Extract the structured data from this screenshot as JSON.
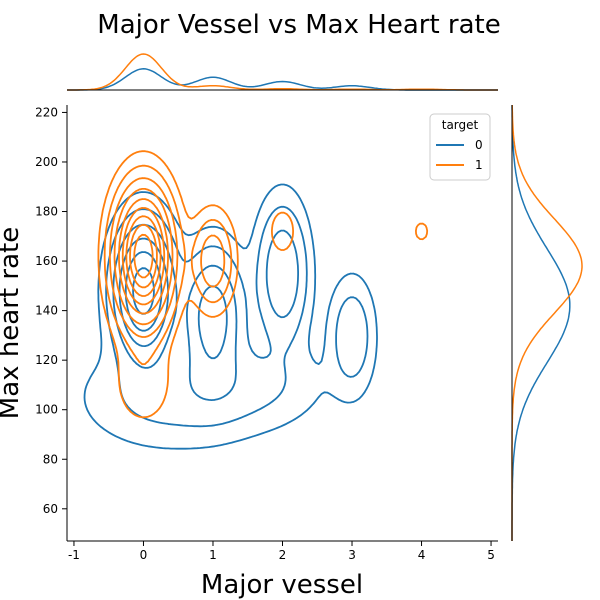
{
  "chart_data": {
    "type": "kde-joint",
    "title": "Major Vessel vs Max Heart rate",
    "xlabel": "Major vessel",
    "ylabel": "Max heart rate",
    "xlim": [
      -1.1,
      5.1
    ],
    "ylim": [
      47,
      223
    ],
    "x_ticks": [
      -1,
      0,
      1,
      2,
      3,
      4,
      5
    ],
    "y_ticks": [
      60,
      80,
      100,
      120,
      140,
      160,
      180,
      200,
      220
    ],
    "legend": {
      "title": "target",
      "position": "top-right",
      "entries": [
        "0",
        "1"
      ]
    },
    "series": [
      {
        "name": "0",
        "color": "#1f77b4",
        "components": [
          {
            "mx": 0.0,
            "my": 148,
            "sx": 0.26,
            "sy": 16,
            "w": 1.0
          },
          {
            "mx": 1.0,
            "my": 138,
            "sx": 0.26,
            "sy": 16,
            "w": 0.55
          },
          {
            "mx": 2.0,
            "my": 155,
            "sx": 0.22,
            "sy": 17,
            "w": 0.42
          },
          {
            "mx": 3.0,
            "my": 130,
            "sx": 0.2,
            "sy": 14,
            "w": 0.22
          },
          {
            "mx": 0.4,
            "my": 105,
            "sx": 0.8,
            "sy": 13,
            "w": 0.15
          },
          {
            "mx": 1.5,
            "my": 110,
            "sx": 0.7,
            "sy": 11,
            "w": 0.12
          }
        ],
        "levels": [
          0.045,
          0.12,
          0.25,
          0.42,
          0.62,
          0.85
        ],
        "marginal_x": [
          0.0,
          1.0,
          2.0,
          3.0
        ],
        "marginal_x_w": [
          0.5,
          0.3,
          0.2,
          0.1
        ],
        "marginal_y_mean": 142,
        "marginal_y_sd": 23
      },
      {
        "name": "1",
        "color": "#ff7f0e",
        "components": [
          {
            "mx": 0.0,
            "my": 162,
            "sx": 0.26,
            "sy": 17,
            "w": 1.0
          },
          {
            "mx": 1.0,
            "my": 160,
            "sx": 0.19,
            "sy": 12,
            "w": 0.26
          },
          {
            "mx": 2.0,
            "my": 172,
            "sx": 0.2,
            "sy": 10,
            "w": 0.06
          },
          {
            "mx": 3.0,
            "my": 145,
            "sx": 0.22,
            "sy": 7,
            "w": 0.04
          },
          {
            "mx": 4.0,
            "my": 172,
            "sx": 0.18,
            "sy": 7,
            "w": 0.05
          },
          {
            "mx": 4.0,
            "my": 144,
            "sx": 0.12,
            "sy": 4,
            "w": 0.025
          },
          {
            "mx": 0.0,
            "my": 110,
            "sx": 0.3,
            "sy": 12,
            "w": 0.08
          }
        ],
        "levels": [
          0.045,
          0.1,
          0.18,
          0.28,
          0.4,
          0.52,
          0.64,
          0.76,
          0.88
        ],
        "marginal_x": [
          0.0,
          1.0,
          2.0,
          3.0,
          4.0
        ],
        "marginal_x_w": [
          0.85,
          0.1,
          0.03,
          0.02,
          0.02
        ],
        "marginal_y_mean": 158,
        "marginal_y_sd": 19
      }
    ]
  }
}
